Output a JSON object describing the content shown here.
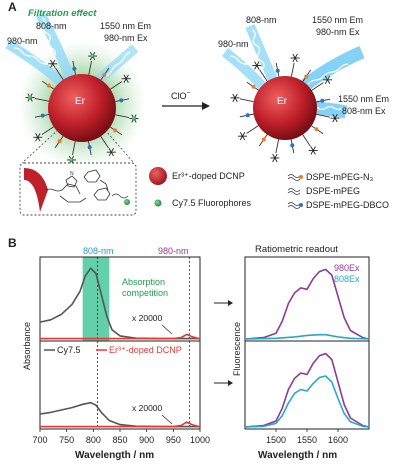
{
  "panel_a": {
    "letter": "A",
    "filtration_label": "Filtration effect",
    "left_labels": {
      "ex808": "808-nm",
      "ex980": "980-nm",
      "em1550": "1550 nm Em",
      "ex980b": "980-nm Ex"
    },
    "particle_label": "Er",
    "arrow_label": "ClO",
    "arrow_label_sup": "−",
    "right_labels": {
      "ex808": "808-nm",
      "ex980": "980-nm",
      "em1550": "1550 nm Em",
      "ex980b": "980-nm Ex",
      "em1550b": "1550 nm Em",
      "ex808b": "808-nm Ex"
    },
    "legend": {
      "dcnp": "Er³⁺-doped DCNP",
      "cy75": "Cy7.5 Fluorophores",
      "mpeg_n3": "DSPE-mPEG-N₃",
      "mpeg": "DSPE-mPEG",
      "mpeg_dbco": "DSPE-mPEG-DBCO"
    },
    "colors": {
      "particle": "#c0202a",
      "glow": "#4caf50",
      "beam": "#4fc3f7",
      "orange": "#f07b2c",
      "blue": "#2f6fc0"
    }
  },
  "panel_b": {
    "letter": "B",
    "marker_808": "808-nm",
    "marker_980": "980-nm",
    "absorption_label": [
      "Absorption",
      "competition"
    ],
    "multiplier_top": "x 20000",
    "multiplier_bottom": "x 20000",
    "legend_cy75": "Cy7.5",
    "legend_dcnp": "Er³⁺-doped DCNP",
    "ylabel_abs": "Absorbance",
    "ylabel_fl": "Fluorescence",
    "xlabel_abs": "Wavelength / nm",
    "xlabel_fl": "Wavelength / nm",
    "ratiometric_title": "Ratiometric readout",
    "series_980": "980Ex",
    "series_808": "808Ex",
    "colors": {
      "cy75": "#555555",
      "dcnp": "#e53935",
      "ex980": "#8e3a96",
      "ex808": "#26a9c9",
      "band": "#2fbf8f",
      "marker808": "#1e9bc9",
      "marker980": "#8e3a96",
      "green_text": "#1e9e4a"
    }
  },
  "chart_data": [
    {
      "type": "line",
      "xlabel": "Wavelength / nm",
      "ylabel": "Absorbance",
      "xlim": [
        700,
        1000
      ],
      "xticks": [
        700,
        750,
        800,
        850,
        900,
        950,
        1000
      ],
      "series": [
        {
          "name": "Cy7.5",
          "x": [
            700,
            720,
            740,
            760,
            775,
            785,
            795,
            805,
            815,
            825,
            835,
            850,
            880,
            920,
            960,
            1000
          ],
          "y": [
            0.22,
            0.25,
            0.32,
            0.45,
            0.62,
            0.82,
            0.92,
            0.85,
            0.58,
            0.3,
            0.12,
            0.04,
            0.01,
            0.005,
            0.005,
            0.005
          ]
        },
        {
          "name": "Er³⁺-doped DCNP",
          "x": [
            700,
            950,
            965,
            975,
            985,
            995,
            1000
          ],
          "y": [
            0.005,
            0.005,
            0.02,
            0.06,
            0.03,
            0.01,
            0.005
          ]
        }
      ],
      "panel": "top (before ClO⁻)"
    },
    {
      "type": "line",
      "xlabel": "Wavelength / nm",
      "ylabel": "Absorbance",
      "xlim": [
        700,
        1000
      ],
      "xticks": [
        700,
        750,
        800,
        850,
        900,
        950,
        1000
      ],
      "series": [
        {
          "name": "Cy7.5",
          "x": [
            700,
            720,
            740,
            760,
            780,
            795,
            805,
            815,
            830,
            850,
            880,
            920,
            1000
          ],
          "y": [
            0.16,
            0.18,
            0.21,
            0.24,
            0.28,
            0.3,
            0.27,
            0.18,
            0.08,
            0.03,
            0.01,
            0.005,
            0.005
          ]
        },
        {
          "name": "Er³⁺-doped DCNP",
          "x": [
            700,
            950,
            965,
            975,
            985,
            995,
            1000
          ],
          "y": [
            0.005,
            0.005,
            0.02,
            0.06,
            0.03,
            0.01,
            0.005
          ]
        }
      ],
      "panel": "bottom (after ClO⁻)"
    },
    {
      "type": "line",
      "xlabel": "Wavelength / nm",
      "ylabel": "Fluorescence",
      "xlim": [
        1450,
        1650
      ],
      "xticks": [
        1500,
        1550,
        1600
      ],
      "series": [
        {
          "name": "980Ex",
          "x": [
            1450,
            1480,
            1500,
            1510,
            1520,
            1530,
            1540,
            1550,
            1560,
            1570,
            1580,
            1590,
            1600,
            1610,
            1620,
            1640,
            1650
          ],
          "y": [
            0,
            0.02,
            0.08,
            0.25,
            0.5,
            0.65,
            0.72,
            0.7,
            0.85,
            0.95,
            0.98,
            0.9,
            0.6,
            0.3,
            0.12,
            0.02,
            0
          ]
        },
        {
          "name": "808Ex",
          "x": [
            1450,
            1500,
            1530,
            1550,
            1570,
            1580,
            1600,
            1620,
            1650
          ],
          "y": [
            0,
            0.01,
            0.03,
            0.05,
            0.06,
            0.06,
            0.03,
            0.01,
            0
          ]
        }
      ],
      "panel": "top (before ClO⁻)"
    },
    {
      "type": "line",
      "xlabel": "Wavelength / nm",
      "ylabel": "Fluorescence",
      "xlim": [
        1450,
        1650
      ],
      "xticks": [
        1500,
        1550,
        1600
      ],
      "series": [
        {
          "name": "980Ex",
          "x": [
            1450,
            1480,
            1500,
            1510,
            1520,
            1530,
            1540,
            1550,
            1560,
            1570,
            1580,
            1590,
            1600,
            1610,
            1620,
            1640,
            1650
          ],
          "y": [
            0,
            0.02,
            0.08,
            0.25,
            0.5,
            0.65,
            0.72,
            0.7,
            0.85,
            0.95,
            0.98,
            0.9,
            0.6,
            0.3,
            0.12,
            0.02,
            0
          ]
        },
        {
          "name": "808Ex",
          "x": [
            1450,
            1480,
            1500,
            1510,
            1520,
            1530,
            1540,
            1550,
            1560,
            1570,
            1580,
            1590,
            1600,
            1610,
            1620,
            1640,
            1650
          ],
          "y": [
            0,
            0.01,
            0.05,
            0.15,
            0.32,
            0.45,
            0.5,
            0.48,
            0.58,
            0.66,
            0.68,
            0.6,
            0.38,
            0.18,
            0.07,
            0.01,
            0
          ]
        }
      ],
      "panel": "bottom (after ClO⁻)"
    }
  ]
}
